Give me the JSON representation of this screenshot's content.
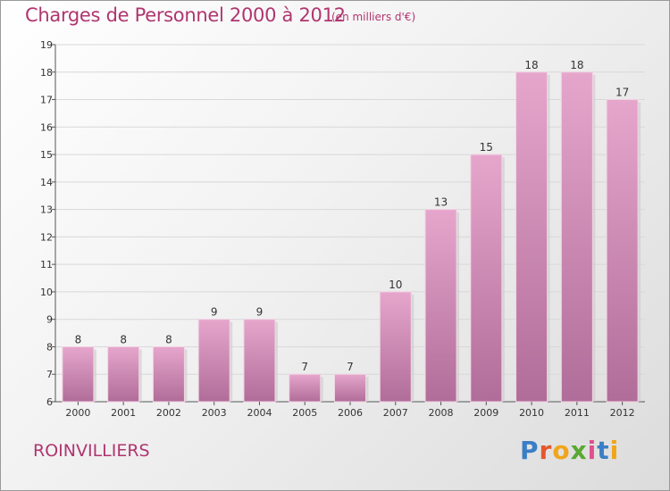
{
  "header": {
    "title": "Charges de Personnel 2000 à 2012",
    "unit": "(en milliers d'€)"
  },
  "footer": {
    "commune": "ROINVILLIERS",
    "logo": "Proxiti"
  },
  "colors": {
    "title": "#b0356f",
    "bar_top": "#e6a6cc",
    "bar_bottom": "#b06d99",
    "logo_letters": [
      "#3a7fc6",
      "#e4572e",
      "#f0a51a",
      "#5aa832",
      "#e04f8f",
      "#3a7fc6",
      "#f0a51a"
    ]
  },
  "chart_data": {
    "type": "bar",
    "title": "Charges de Personnel 2000 à 2012",
    "subtitle": "(en milliers d'€)",
    "categories": [
      "2000",
      "2001",
      "2002",
      "2003",
      "2004",
      "2005",
      "2006",
      "2007",
      "2008",
      "2009",
      "2010",
      "2011",
      "2012"
    ],
    "values": [
      8,
      8,
      8,
      9,
      9,
      7,
      7,
      10,
      13,
      15,
      18,
      18,
      17
    ],
    "ylim": [
      6,
      19
    ],
    "yticks": [
      "6",
      "7",
      "8",
      "9",
      "10",
      "11",
      "12",
      "13",
      "14",
      "15",
      "16",
      "17",
      "18",
      "19"
    ],
    "grid": true
  }
}
